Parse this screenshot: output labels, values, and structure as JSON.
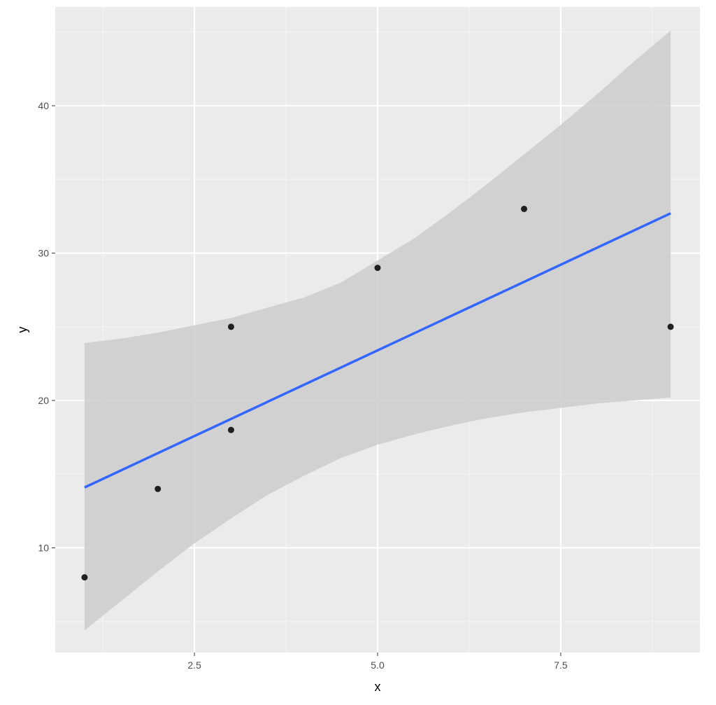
{
  "chart_data": {
    "type": "scatter",
    "xlabel": "x",
    "ylabel": "y",
    "xlim": [
      0.6,
      9.4
    ],
    "ylim": [
      2.9,
      46.7
    ],
    "x_ticks": [
      2.5,
      5.0,
      7.5
    ],
    "x_tick_labels": [
      "2.5",
      "5.0",
      "7.5"
    ],
    "y_ticks": [
      10,
      20,
      30,
      40
    ],
    "y_tick_labels": [
      "10",
      "20",
      "30",
      "40"
    ],
    "grid": true,
    "points": {
      "x": [
        1,
        2,
        3,
        3,
        5,
        7,
        9
      ],
      "y": [
        8,
        14,
        18,
        25,
        29,
        33,
        25
      ]
    },
    "regression_line": {
      "method": "lm",
      "x": [
        1,
        9
      ],
      "y": [
        14.1,
        32.7
      ]
    },
    "confidence_band": {
      "x": [
        1,
        1.5,
        2,
        2.5,
        3,
        3.5,
        4,
        4.5,
        5,
        5.5,
        6,
        6.5,
        7,
        7.5,
        8,
        8.5,
        9
      ],
      "lower": [
        4.4,
        6.4,
        8.4,
        10.3,
        12.0,
        13.6,
        14.9,
        16.1,
        17.0,
        17.7,
        18.3,
        18.8,
        19.2,
        19.5,
        19.8,
        20.0,
        20.2
      ],
      "upper": [
        23.9,
        24.2,
        24.6,
        25.1,
        25.6,
        26.3,
        27.0,
        28.0,
        29.5,
        31.0,
        32.8,
        34.7,
        36.7,
        38.7,
        40.8,
        43.0,
        45.1
      ]
    },
    "colors": {
      "panel_background": "#ebebeb",
      "grid_major": "#ffffff",
      "grid_minor": "#f5f5f5",
      "band": "#cccccc",
      "line": "#3366ff",
      "points": "#000000"
    }
  }
}
